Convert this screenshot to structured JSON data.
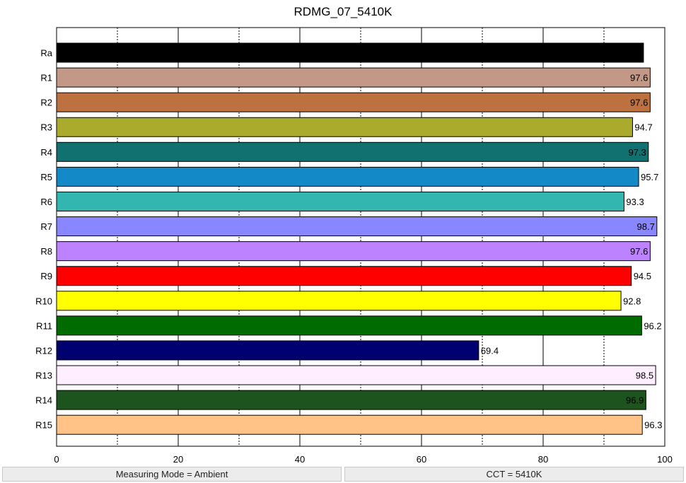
{
  "chart_data": {
    "type": "bar",
    "orientation": "horizontal",
    "title": "RDMG_07_5410K",
    "xlabel": "",
    "ylabel": "",
    "xlim": [
      0,
      100
    ],
    "x_ticks": [
      0,
      20,
      40,
      60,
      80,
      100
    ],
    "grid": true,
    "categories": [
      "Ra",
      "R1",
      "R2",
      "R3",
      "R4",
      "R5",
      "R6",
      "R7",
      "R8",
      "R9",
      "R10",
      "R11",
      "R12",
      "R13",
      "R14",
      "R15"
    ],
    "values": [
      96.5,
      97.6,
      97.6,
      94.7,
      97.3,
      95.7,
      93.3,
      98.7,
      97.6,
      94.5,
      92.8,
      96.2,
      69.4,
      98.5,
      96.9,
      96.3
    ],
    "value_labels": [
      "96.5",
      "97.6",
      "97.6",
      "94.7",
      "97.3",
      "95.7",
      "93.3",
      "98.7",
      "97.6",
      "94.5",
      "92.8",
      "96.2",
      "69.4",
      "98.5",
      "96.9",
      "96.3"
    ],
    "colors": [
      "#000000",
      "#c49886",
      "#bd7040",
      "#aaaa2c",
      "#107170",
      "#1489c7",
      "#34b6b0",
      "#8887ff",
      "#bc82ff",
      "#ff0000",
      "#ffff00",
      "#006b00",
      "#000070",
      "#ffeeff",
      "#1d541d",
      "#ffc387"
    ],
    "label_colors": [
      "#ffffff",
      "#000000",
      "#000000",
      "#000000",
      "#000000",
      "#000000",
      "#000000",
      "#000000",
      "#000000",
      "#000000",
      "#000000",
      "#000000",
      "#000000",
      "#000000",
      "#000000",
      "#000000"
    ]
  },
  "status": {
    "left": "Measuring Mode = Ambient",
    "right": "CCT = 5410K"
  }
}
